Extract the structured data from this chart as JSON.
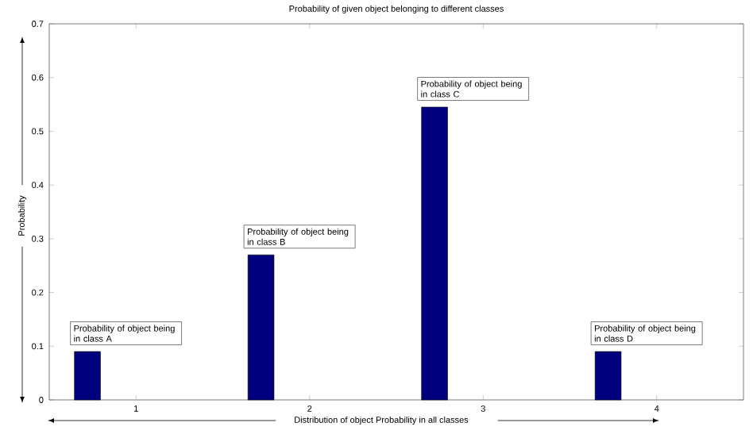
{
  "chart_data": {
    "type": "bar",
    "title": "Probability of given object belonging to different classes",
    "xlabel": "Distribution of object Probability in all classes",
    "ylabel": "Probability",
    "x": [
      0.72,
      1.72,
      2.72,
      3.72
    ],
    "values": [
      0.09,
      0.27,
      0.545,
      0.09
    ],
    "color": "#00007f",
    "xlim": [
      0.5,
      4.5
    ],
    "ylim": [
      0,
      0.7
    ],
    "xticks": [
      1,
      2,
      3,
      4
    ],
    "yticks": [
      0,
      0.1,
      0.2,
      0.3,
      0.4,
      0.5,
      0.6,
      0.7
    ],
    "annotations": [
      {
        "text": "Probability of object being in class A",
        "x": 0.72,
        "y": 0.09
      },
      {
        "text": "Probability of object being in class B",
        "x": 1.72,
        "y": 0.27
      },
      {
        "text": "Probability of object being in class C",
        "x": 2.72,
        "y": 0.545
      },
      {
        "text": "Probability of object being in class D",
        "x": 3.72,
        "y": 0.09
      }
    ]
  }
}
